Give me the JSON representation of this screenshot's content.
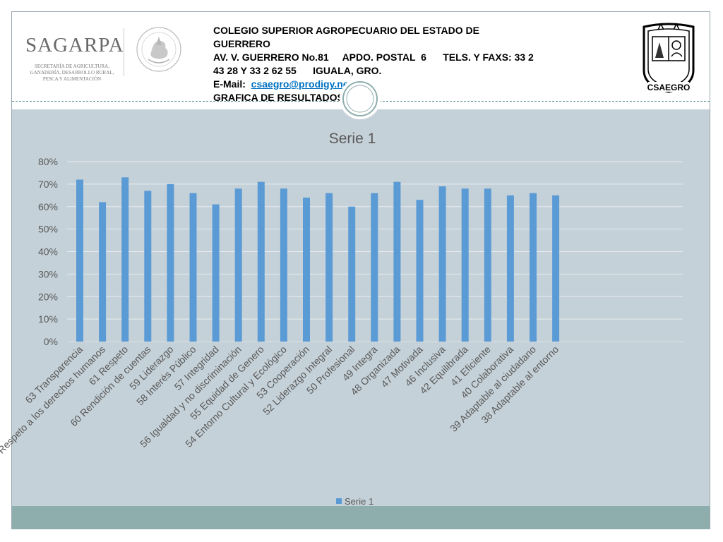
{
  "header": {
    "line1": "COLEGIO SUPERIOR AGROPECUARIO DEL ESTADO DE",
    "line2": "GUERRERO",
    "line3": "AV. V. GUERRERO No.81     APDO. POSTAL  6      TELS. Y FAXS: 33 2",
    "line4": "43 28 Y 33 2 62 55      IGUALA, GRO.",
    "email_label": "E-Mail:  ",
    "email": "csaegro@prodigy.net.mx",
    "line6": "GRAFICA DE RESULTADOS"
  },
  "logos": {
    "sagarpa_word": "SAGARPA",
    "sagarpa_sub": "SECRETARÍA DE AGRICULTURA, GANADERÍA, DESARROLLO RURAL, PESCA Y ALIMENTACIÓN",
    "seal_text": "ESTADOS UNIDOS MEXICANOS",
    "csaegro_text": "CSAEGRO"
  },
  "colors": {
    "bar": "#5b9bd5",
    "chart_bg": "#c5d1d8",
    "band": "#8eaeae",
    "gridline": "#e6ecef"
  },
  "chart_data": {
    "type": "bar",
    "title": "Serie 1",
    "xlabel": "",
    "ylabel": "",
    "ylim": [
      0,
      0.8
    ],
    "yticks": [
      "0%",
      "10%",
      "20%",
      "30%",
      "40%",
      "50%",
      "60%",
      "70%",
      "80%"
    ],
    "grid": true,
    "legend_position": "bottom",
    "categories": [
      "63 Transparencia",
      "62 Respeto a los derechos humanos",
      "61 Respeto",
      "60 Rendición de cuentas",
      "59 Liderazgo",
      "58 Interés Público",
      "57 Integridad",
      "56 Igualdad y no discriminación",
      "55 Equidad de Genero",
      "54 Entorno Cultural y Ecológico",
      "53 Cooperación",
      "52 Liderazgo Integral",
      "50 Profesional",
      "49 Integra",
      "48 Organizada",
      "47 Motivada",
      "46 Inclusiva",
      "42 Equilibrada",
      "41 Eficiente",
      "40 Colaborativa",
      "39 Adaptable al ciudadano",
      "38 Adaptable al entorno"
    ],
    "series": [
      {
        "name": "Serie 1",
        "values": [
          0.72,
          0.62,
          0.73,
          0.67,
          0.7,
          0.66,
          0.61,
          0.68,
          0.71,
          0.68,
          0.64,
          0.66,
          0.6,
          0.66,
          0.71,
          0.63,
          0.69,
          0.68,
          0.68,
          0.65,
          0.66,
          0.65
        ]
      }
    ]
  }
}
